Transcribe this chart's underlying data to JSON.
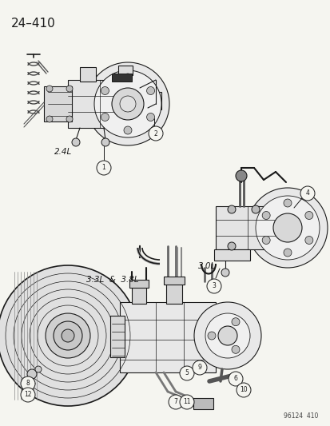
{
  "bg_color": "#f5f5f0",
  "line_color": "#1a1a1a",
  "fig_width": 4.14,
  "fig_height": 5.33,
  "dpi": 100,
  "labels": {
    "page_id": "24–410",
    "label_24L": "2.4L",
    "label_33L": "3.3L  &  3.8L",
    "label_30L": "3.0L",
    "footer": "96124  410"
  }
}
